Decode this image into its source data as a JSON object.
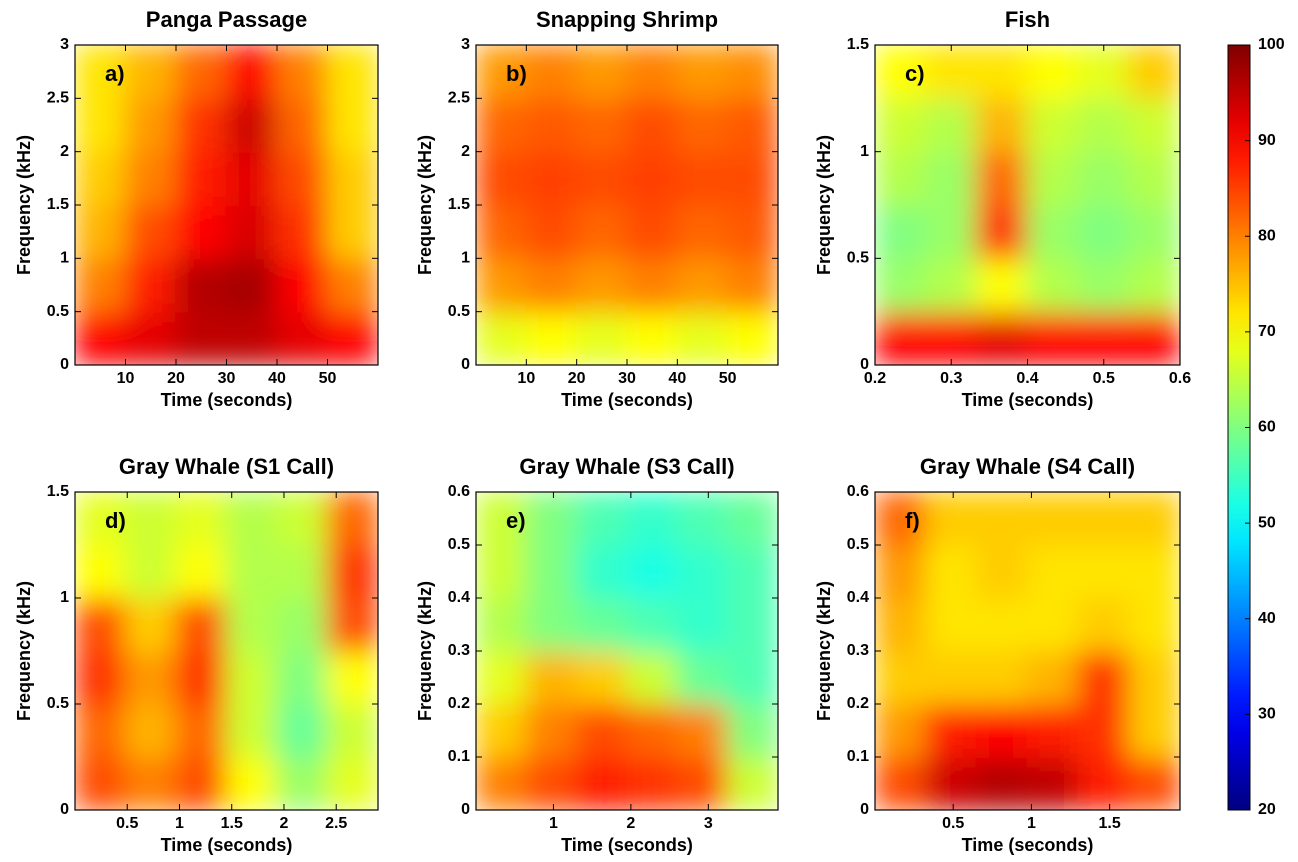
{
  "chart_data": [
    {
      "type": "heatmap",
      "title": "Panga Passage",
      "panel": "a)",
      "xlabel": "Time (seconds)",
      "ylabel": "Frequency (kHz)",
      "xlim": [
        0,
        60
      ],
      "xticks": [
        10,
        20,
        30,
        40,
        50
      ],
      "ylim": [
        0,
        3
      ],
      "yticks": [
        0,
        0.5,
        1,
        1.5,
        2,
        2.5,
        3
      ],
      "z": [
        [
          90,
          92,
          95,
          95,
          92,
          90
        ],
        [
          80,
          88,
          96,
          97,
          90,
          80
        ],
        [
          76,
          84,
          90,
          93,
          86,
          74
        ],
        [
          74,
          80,
          88,
          92,
          84,
          74
        ],
        [
          72,
          78,
          86,
          94,
          82,
          72
        ],
        [
          72,
          76,
          82,
          90,
          80,
          72
        ]
      ]
    },
    {
      "type": "heatmap",
      "title": "Snapping Shrimp",
      "panel": "b)",
      "xlabel": "Time (seconds)",
      "ylabel": "Frequency (kHz)",
      "xlim": [
        0,
        60
      ],
      "xticks": [
        10,
        20,
        30,
        40,
        50
      ],
      "ylim": [
        0,
        3
      ],
      "yticks": [
        0,
        0.5,
        1,
        1.5,
        2,
        2.5,
        3
      ],
      "z": [
        [
          68,
          70,
          68,
          70,
          68,
          70
        ],
        [
          78,
          80,
          78,
          80,
          78,
          80
        ],
        [
          82,
          84,
          82,
          84,
          82,
          83
        ],
        [
          84,
          85,
          84,
          85,
          84,
          84
        ],
        [
          82,
          83,
          82,
          84,
          82,
          83
        ],
        [
          78,
          80,
          78,
          80,
          78,
          79
        ]
      ]
    },
    {
      "type": "heatmap",
      "title": "Fish",
      "panel": "c)",
      "xlabel": "Time (seconds)",
      "ylabel": "Frequency (kHz)",
      "xlim": [
        0.2,
        0.6
      ],
      "xticks": [
        0.2,
        0.3,
        0.4,
        0.5,
        0.6
      ],
      "ylim": [
        0,
        1.5
      ],
      "yticks": [
        0,
        0.5,
        1,
        1.5
      ],
      "z": [
        [
          90,
          90,
          92,
          90,
          90,
          90
        ],
        [
          62,
          64,
          70,
          64,
          62,
          64
        ],
        [
          60,
          62,
          86,
          62,
          60,
          62
        ],
        [
          64,
          62,
          82,
          64,
          62,
          64
        ],
        [
          66,
          64,
          76,
          66,
          64,
          66
        ],
        [
          70,
          72,
          72,
          70,
          68,
          74
        ]
      ]
    },
    {
      "type": "heatmap",
      "title": "Gray Whale (S1 Call)",
      "panel": "d)",
      "xlabel": "Time (seconds)",
      "ylabel": "Frequency (kHz)",
      "xlim": [
        0,
        2.9
      ],
      "xticks": [
        0.5,
        1,
        1.5,
        2,
        2.5
      ],
      "ylim": [
        0,
        1.5
      ],
      "yticks": [
        0,
        0.5,
        1,
        1.5
      ],
      "z": [
        [
          84,
          80,
          84,
          70,
          62,
          68
        ],
        [
          82,
          76,
          82,
          66,
          58,
          66
        ],
        [
          86,
          78,
          86,
          66,
          60,
          70
        ],
        [
          84,
          74,
          84,
          64,
          62,
          84
        ],
        [
          70,
          66,
          70,
          64,
          64,
          86
        ],
        [
          68,
          66,
          68,
          64,
          66,
          82
        ]
      ]
    },
    {
      "type": "heatmap",
      "title": "Gray Whale (S3 Call)",
      "panel": "e)",
      "xlabel": "Time (seconds)",
      "ylabel": "Frequency (kHz)",
      "xlim": [
        0,
        3.9
      ],
      "xticks": [
        1,
        2,
        3
      ],
      "ylim": [
        0,
        0.6
      ],
      "yticks": [
        0,
        0.1,
        0.2,
        0.3,
        0.4,
        0.5,
        0.6
      ],
      "z": [
        [
          80,
          84,
          88,
          86,
          84,
          66
        ],
        [
          74,
          80,
          84,
          82,
          80,
          60
        ],
        [
          68,
          76,
          74,
          66,
          58,
          56
        ],
        [
          64,
          60,
          58,
          56,
          54,
          56
        ],
        [
          66,
          60,
          54,
          52,
          54,
          56
        ],
        [
          66,
          60,
          56,
          54,
          56,
          58
        ]
      ]
    },
    {
      "type": "heatmap",
      "title": "Gray Whale (S4 Call)",
      "panel": "f)",
      "xlabel": "Time (seconds)",
      "ylabel": "Frequency (kHz)",
      "xlim": [
        0,
        1.95
      ],
      "xticks": [
        0.5,
        1,
        1.5
      ],
      "ylim": [
        0,
        0.6
      ],
      "yticks": [
        0,
        0.1,
        0.2,
        0.3,
        0.4,
        0.5,
        0.6
      ],
      "z": [
        [
          84,
          94,
          96,
          95,
          88,
          84
        ],
        [
          78,
          88,
          90,
          88,
          86,
          74
        ],
        [
          74,
          74,
          74,
          76,
          86,
          74
        ],
        [
          76,
          72,
          72,
          72,
          74,
          72
        ],
        [
          78,
          72,
          74,
          72,
          72,
          72
        ],
        [
          82,
          74,
          74,
          74,
          74,
          74
        ]
      ]
    },
    {
      "type": "colorbar",
      "colormap": "jet",
      "ylim": [
        20,
        100
      ],
      "yticks": [
        20,
        30,
        40,
        50,
        60,
        70,
        80,
        90,
        100
      ]
    }
  ]
}
